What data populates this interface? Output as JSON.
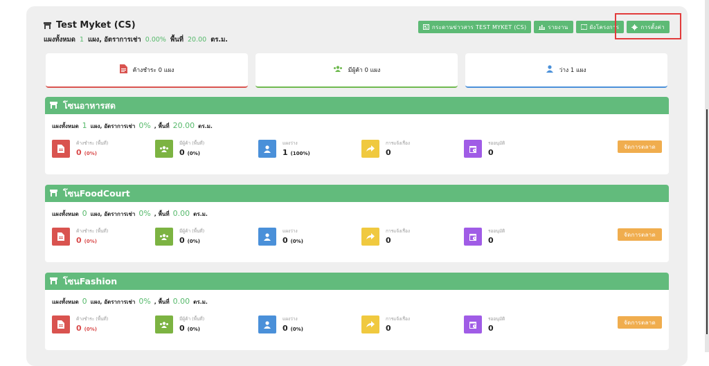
{
  "header": {
    "title": "Test Myket (CS)",
    "stall_label": "แผงทั้งหมด",
    "stall_count": "1",
    "rent_label": "แผง, อัตราการเช่า",
    "rent_rate": "0.00%",
    "area_label": "พื้นที่",
    "area_value": "20.00",
    "area_unit": "ตร.ม."
  },
  "toolbar": {
    "bulletin": "กระดานข่าวสาร TEST MYKET (CS)",
    "report": "รายงาน",
    "plan": "ผังโครงการ",
    "settings": "การตั้งค่า"
  },
  "summary": {
    "overdue": "ค้างชำระ 0 แผง",
    "tenants": "มีผู้ค้า 0 แผง",
    "vacant": "ว่าง 1 แผง"
  },
  "labels": {
    "stall_label": "แผงทั้งหมด",
    "rent_label": "แผง, อัตราการเช่า",
    "area_label": ", พื้นที่",
    "area_unit": "ตร.ม.",
    "overdue": "ค้างชำระ (พื้นที่)",
    "tenant": "มีผู้ค้า (พื้นที่)",
    "vacant": "แผงว่าง",
    "report": "การแจ้งเรื่อง",
    "approval": "รออนุมัติ",
    "manage": "จัดการตลาด"
  },
  "zones": [
    {
      "name": "โซนอาหารสด",
      "stalls": "1",
      "rate": "0%",
      "area": "20.00",
      "overdue": "0",
      "overdue_pct": "(0%)",
      "tenant": "0",
      "tenant_pct": "(0%)",
      "vacant": "1",
      "vacant_pct": "(100%)",
      "report": "0",
      "approval": "0"
    },
    {
      "name": "โซนFoodCourt",
      "stalls": "0",
      "rate": "0%",
      "area": "0.00",
      "overdue": "0",
      "overdue_pct": "(0%)",
      "tenant": "0",
      "tenant_pct": "(0%)",
      "vacant": "0",
      "vacant_pct": "(0%)",
      "report": "0",
      "approval": "0"
    },
    {
      "name": "โซนFashion",
      "stalls": "0",
      "rate": "0%",
      "area": "0.00",
      "overdue": "0",
      "overdue_pct": "(0%)",
      "tenant": "0",
      "tenant_pct": "(0%)",
      "vacant": "0",
      "vacant_pct": "(0%)",
      "report": "0",
      "approval": "0"
    }
  ],
  "colors": {
    "green": "#5dba75",
    "red": "#d9534f",
    "blue": "#4a90d9",
    "yellow": "#f0c93f",
    "purple": "#a05ce6",
    "orange": "#f0ad4e",
    "olive": "#7cb342"
  }
}
